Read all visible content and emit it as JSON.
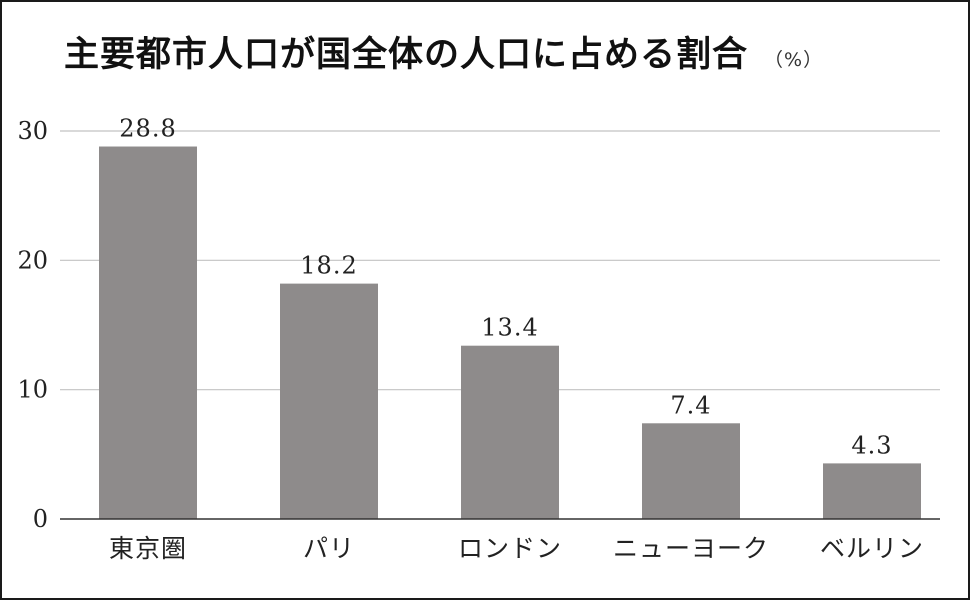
{
  "title": "主要都市人口が国全体の人口に占める割合",
  "unit": "（%）",
  "colors": {
    "bar": "#8e8b8b",
    "grid": "#c2c2c2",
    "axis": "#333333",
    "border": "#1a1a1a"
  },
  "chart_data": {
    "type": "bar",
    "title": "主要都市人口が国全体の人口に占める割合",
    "unit": "（%）",
    "categories": [
      "東京圏",
      "パリ",
      "ロンドン",
      "ニューヨーク",
      "ベルリン"
    ],
    "values": [
      28.8,
      18.2,
      13.4,
      7.4,
      4.3
    ],
    "value_labels": [
      "28.8",
      "18.2",
      "13.4",
      "7.4",
      "4.3"
    ],
    "y_ticks": [
      0,
      10,
      20,
      30
    ],
    "ylim": [
      0,
      30
    ],
    "grid": true,
    "legend": "none"
  }
}
